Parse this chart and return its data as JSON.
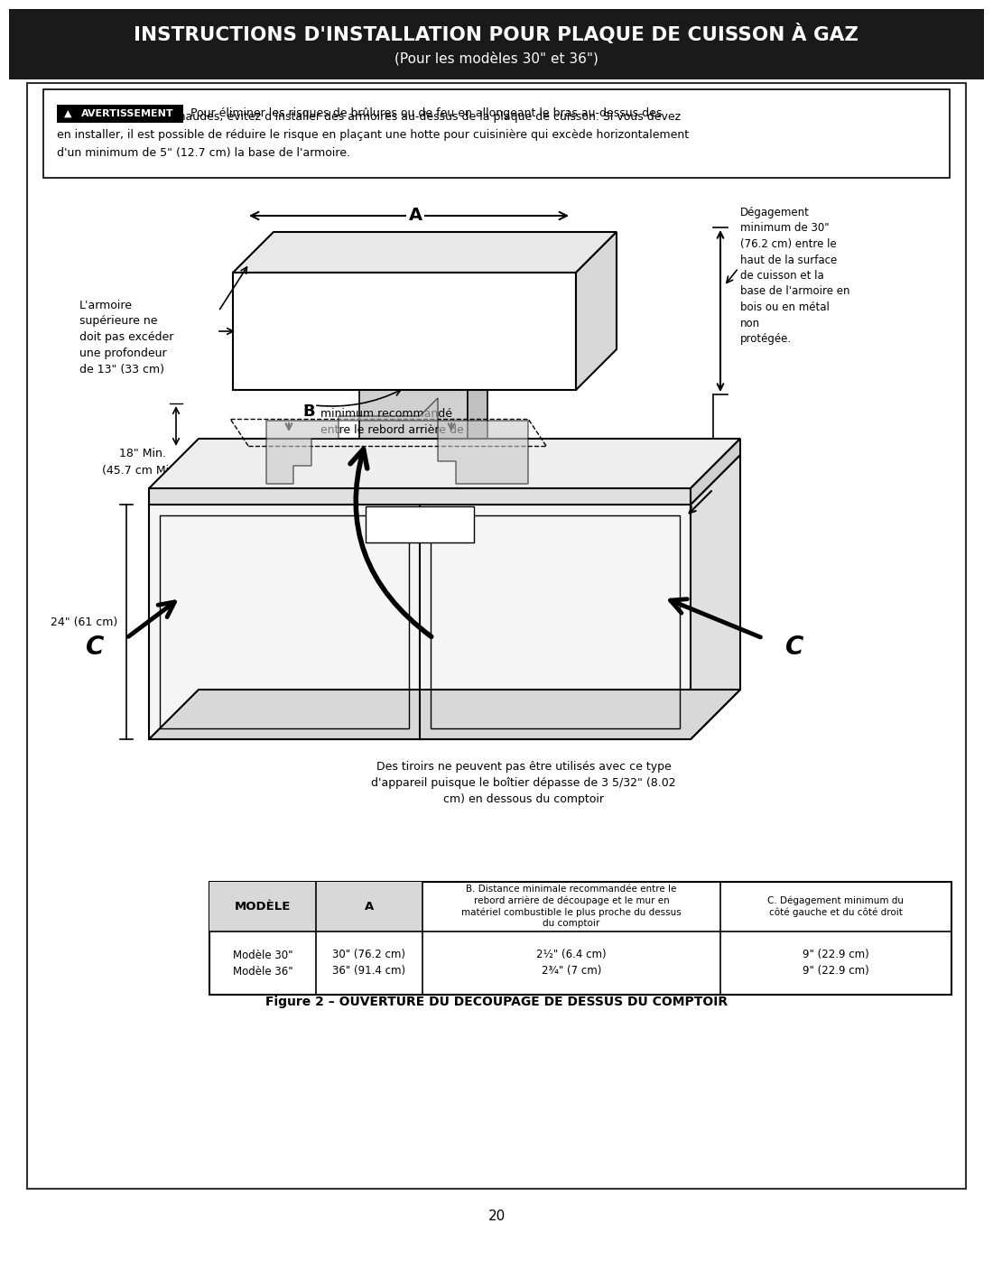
{
  "title_main": "INSTRUCTIONS D'INSTALLATION POUR PLAQUE DE CUISSON À GAZ",
  "title_sub": "(Pour les modèles 30\" et 36\")",
  "title_bg": "#1a1a1a",
  "title_fg": "#ffffff",
  "page_bg": "#ffffff",
  "border_color": "#333333",
  "warning_label": "AVERTISSEMENT",
  "warning_line1": "Pour éliminer les risques de brûlures ou de feu en allongeant le bras au-dessus des",
  "warning_line2": "surfaces de cuisson chaudes, évitez d'installer des armoires au-dessus de la plaque de cuisson. Si vous devez",
  "warning_line3": "en installer, il est possible de réduire le risque en plaçant une hotte pour cuisinière qui excède horizontalement",
  "warning_line4": "d'un minimum de 5\" (12.7 cm) la base de l'armoire.",
  "label_armoire": "L'armoire\nsupérieure ne\ndoit pas excéder\nune profondeur\nde 13\" (33 cm)",
  "label_degagement_top": "Dégagement\nminimum de 30\"\n(76.2 cm) entre le\nhaut de la surface\nde cuisson et la\nbase de l'armoire en\nbois ou en métal\nnon\nprotégée.",
  "label_degagement": "Dégagement",
  "label_A": "A",
  "label_B": "B",
  "label_C_left": "C",
  "label_C_right": "C",
  "label_18min": "18\" Min.\n(45.7 cm Min.)",
  "label_24cm": "24\" (61 cm)",
  "label_B_desc": "minimum recommandé\nentre le rebord arrière de\ndécoupage et le mur en\nmatériel combustible le plus\nproche du dessus du\ncomptoir",
  "label_drawers": "Des tiroirs ne peuvent pas être utilisés avec ce type\nd'appareil puisque le boîtier dépasse de 3 5/32\" (8.02\ncm) en dessous du comptoir",
  "figure_caption": "Figure 2 – OUVERTURE DU DÉCOUPAGE DE DESSUS DU COMPTOIR",
  "table_col0_header": "MODÈLE",
  "table_col1_header": "A",
  "table_col2_header": "B. Distance minimale recommandée entre le\nrebord arrière de découpage et le mur en\nmatériel combustible le plus proche du dessus\ndu comptoir",
  "table_col3_header": "C. Dégagement minimum du\ncôté gauche et du côté droit",
  "table_row1_col0": "Modèle 30\"\nModèle 36\"",
  "table_row1_col1": "30\" (76.2 cm)\n36\" (91.4 cm)",
  "table_row1_col2": "2½\" (6.4 cm)\n2¾\" (7 cm)",
  "table_row1_col3": "9\" (22.9 cm)\n9\" (22.9 cm)",
  "page_number": "20"
}
